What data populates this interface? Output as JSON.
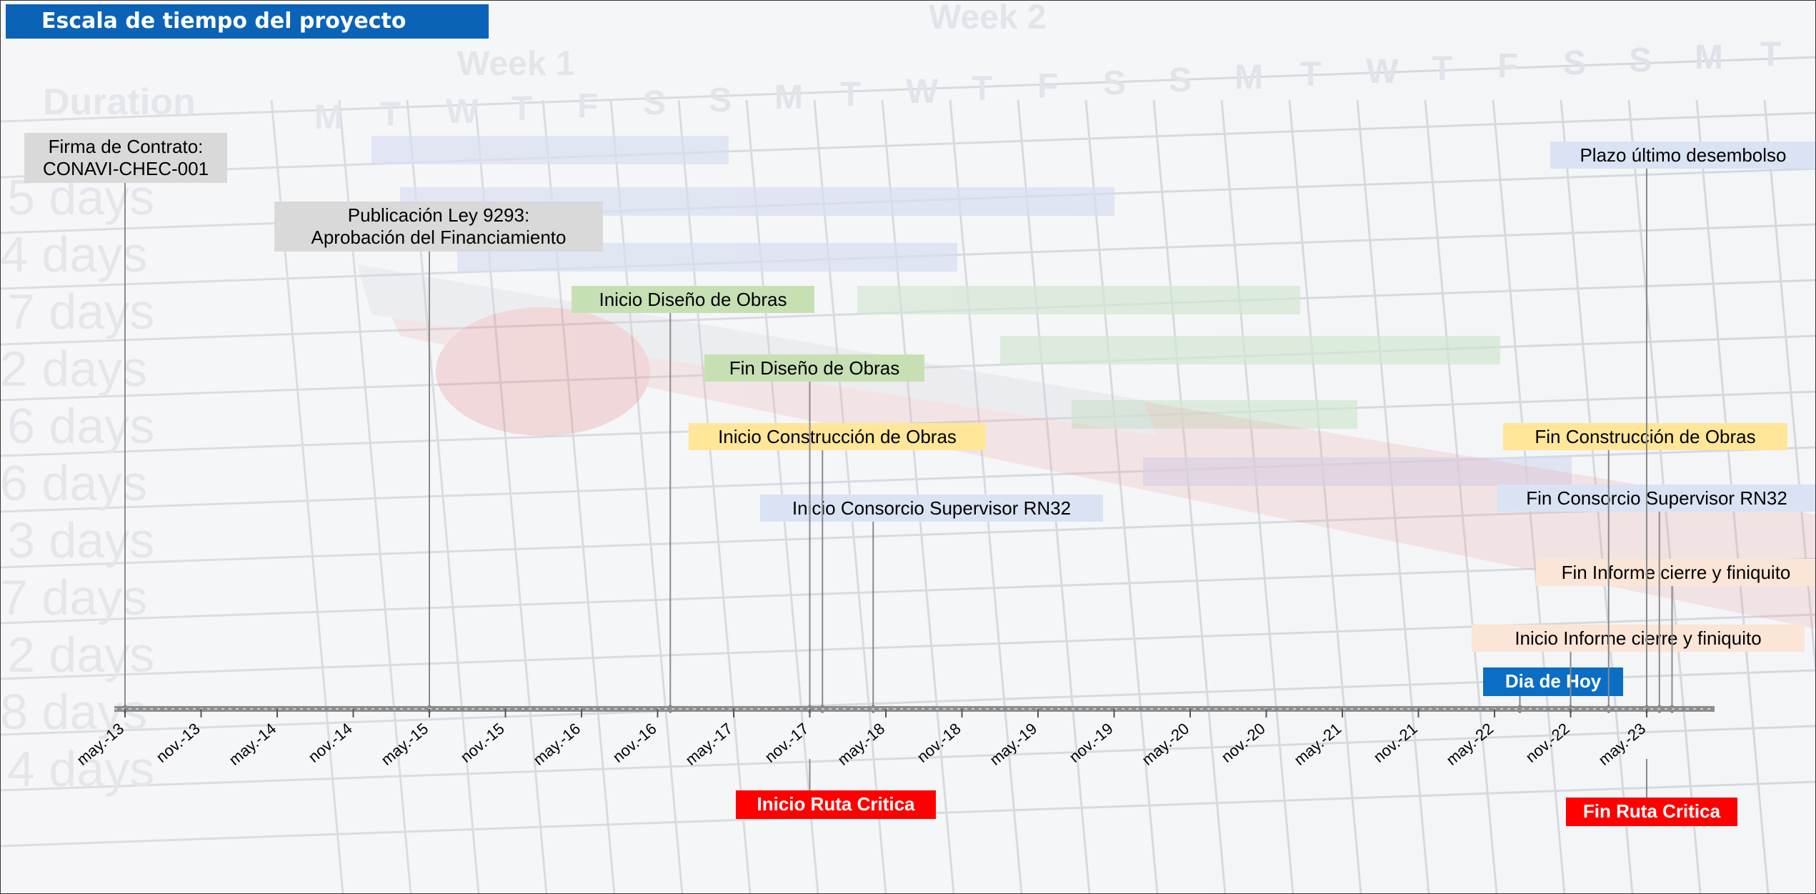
{
  "header": {
    "title": "Escala de tiempo del proyecto"
  },
  "background": {
    "week_labels": [
      "Week 1",
      "Week 2"
    ],
    "day_letters": [
      "M",
      "T",
      "W",
      "T",
      "F",
      "S",
      "S",
      "M",
      "T",
      "W",
      "T",
      "F",
      "S",
      "S",
      "M",
      "T",
      "W",
      "T",
      "F",
      "S",
      "S",
      "M",
      "T"
    ],
    "column_heading": "Duration",
    "durations": [
      "5 days",
      "4 days",
      "7 days",
      "2 days",
      "6 days",
      "6 days",
      "3 days",
      "7 days",
      "2 days",
      "8 days",
      "4 days"
    ]
  },
  "timeline": {
    "ticks": [
      "may.-13",
      "nov.-13",
      "may.-14",
      "nov.-14",
      "may.-15",
      "nov.-15",
      "may.-16",
      "nov.-16",
      "may.-17",
      "nov.-17",
      "may.-18",
      "nov.-18",
      "may.-19",
      "nov.-19",
      "may.-20",
      "nov.-20",
      "may.-21",
      "nov.-21",
      "may.-22",
      "nov.-22",
      "may.-23"
    ],
    "colors": {
      "gray": "#d9d9d9",
      "green": "#c6e0b4",
      "yellow": "#ffe699",
      "blue": "#dae3f3",
      "peach": "#fbe5d6",
      "today": "#0b6dc4",
      "critical": "#ff0000"
    },
    "events": [
      {
        "id": "firma",
        "label_line1": "Firma de Contrato:",
        "label_line2": "CONAVI-CHEC-001",
        "date": "2013-05",
        "color": "gray"
      },
      {
        "id": "publicacion",
        "label_line1": "Publicación Ley 9293:",
        "label_line2": "Aprobación del Financiamiento",
        "date": "2015-05",
        "color": "gray"
      },
      {
        "id": "inicio-diseno",
        "label_line1": "Inicio Diseño de Obras",
        "date": "2016-12",
        "color": "green"
      },
      {
        "id": "fin-diseno",
        "label_line1": "Fin Diseño de Obras",
        "date": "2017-11",
        "color": "green"
      },
      {
        "id": "inicio-construccion",
        "label_line1": "Inicio Construcción de Obras",
        "date": "2017-12",
        "color": "yellow"
      },
      {
        "id": "inicio-consorcio",
        "label_line1": "Inicio Consorcio Supervisor RN32",
        "date": "2018-04",
        "color": "blue"
      },
      {
        "id": "plazo",
        "label_line1": "Plazo último desembolso",
        "date": "2023-05",
        "color": "blue"
      },
      {
        "id": "fin-construccion",
        "label_line1": "Fin Construcción de Obras",
        "date": "2023-02",
        "color": "yellow"
      },
      {
        "id": "fin-consorcio",
        "label_line1": "Fin Consorcio Supervisor RN32",
        "date": "2023-06",
        "color": "blue"
      },
      {
        "id": "fin-informe",
        "label_line1": "Fin Informe cierre y finiquito",
        "date": "2023-07",
        "color": "peach"
      },
      {
        "id": "inicio-informe",
        "label_line1": "Inicio Informe cierre y finiquito",
        "date": "2022-11",
        "color": "peach"
      },
      {
        "id": "hoy",
        "label_line1": "Dia de Hoy",
        "date": "2022-07",
        "color": "today"
      }
    ],
    "critical": [
      {
        "id": "inicio-ruta",
        "label": "Inicio Ruta Critica",
        "date": "2017-11"
      },
      {
        "id": "fin-ruta",
        "label": "Fin Ruta Critica",
        "date": "2023-05"
      }
    ]
  }
}
